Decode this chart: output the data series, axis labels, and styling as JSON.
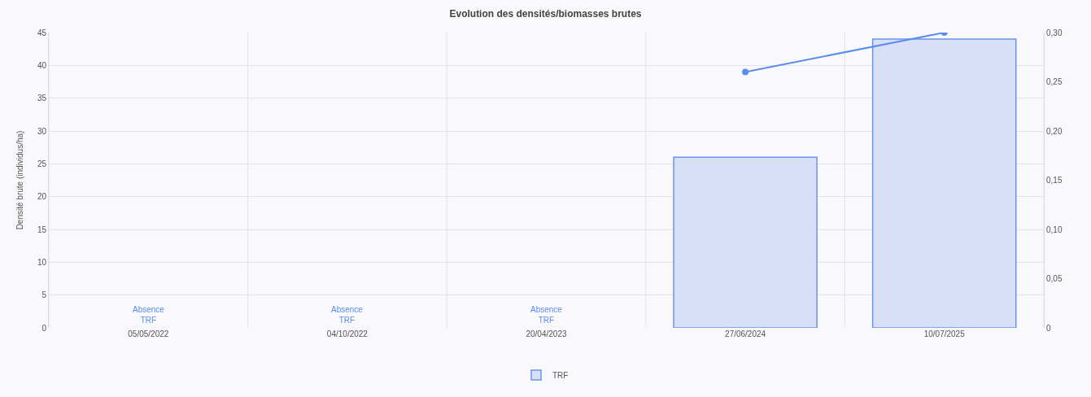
{
  "chart_data": {
    "type": "bar",
    "title": "Evolution des densités/biomasses brutes",
    "ylabel": "Densité brute (individus/ha)",
    "categories": [
      "05/05/2022",
      "04/10/2022",
      "20/04/2023",
      "27/06/2024",
      "10/07/2025"
    ],
    "series": [
      {
        "name": "TRF",
        "color": "#d8e0f8",
        "values": [
          null,
          null,
          null,
          26,
          44
        ]
      },
      {
        "type": "line",
        "axis": "y2",
        "color": "#5b8def",
        "marker": "circle",
        "line_style": "solid",
        "values": [
          null,
          null,
          null,
          0.26,
          0.3
        ]
      }
    ],
    "ylim": [
      0,
      45
    ],
    "yticks": [
      0,
      5,
      10,
      15,
      20,
      25,
      30,
      35,
      40,
      45
    ],
    "y2lim": [
      0,
      0.3
    ],
    "y2ticks": [
      0,
      {
        "value": 0.05,
        "label": "0,05"
      },
      {
        "value": 0.1,
        "label": "0,10"
      },
      {
        "value": 0.15,
        "label": "0,15"
      },
      {
        "value": 0.2,
        "label": "0,20"
      },
      {
        "value": 0.25,
        "label": "0,25"
      },
      {
        "value": 0.3,
        "label": "0,30"
      }
    ],
    "annotations": [
      "Absence\nTRF",
      "Absence\nTRF",
      "Absence\nTRF"
    ],
    "grid": true,
    "legend": "bottom"
  }
}
